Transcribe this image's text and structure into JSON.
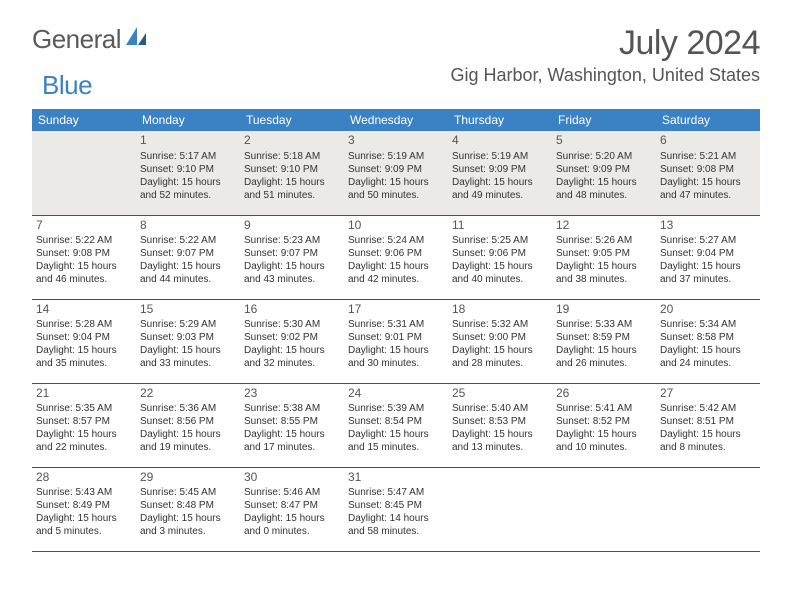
{
  "logo": {
    "text1": "General",
    "text2": "Blue"
  },
  "title": "July 2024",
  "location": "Gig Harbor, Washington, United States",
  "colors": {
    "header_bg": "#3b82c4",
    "row_border": "#2a5a8a",
    "logo_blue": "#3b82c4",
    "text": "#333333",
    "title_text": "#555555"
  },
  "dayNames": [
    "Sunday",
    "Monday",
    "Tuesday",
    "Wednesday",
    "Thursday",
    "Friday",
    "Saturday"
  ],
  "weeks": [
    [
      null,
      {
        "n": "1",
        "sr": "5:17 AM",
        "ss": "9:10 PM",
        "dl": "15 hours and 52 minutes."
      },
      {
        "n": "2",
        "sr": "5:18 AM",
        "ss": "9:10 PM",
        "dl": "15 hours and 51 minutes."
      },
      {
        "n": "3",
        "sr": "5:19 AM",
        "ss": "9:09 PM",
        "dl": "15 hours and 50 minutes."
      },
      {
        "n": "4",
        "sr": "5:19 AM",
        "ss": "9:09 PM",
        "dl": "15 hours and 49 minutes."
      },
      {
        "n": "5",
        "sr": "5:20 AM",
        "ss": "9:09 PM",
        "dl": "15 hours and 48 minutes."
      },
      {
        "n": "6",
        "sr": "5:21 AM",
        "ss": "9:08 PM",
        "dl": "15 hours and 47 minutes."
      }
    ],
    [
      {
        "n": "7",
        "sr": "5:22 AM",
        "ss": "9:08 PM",
        "dl": "15 hours and 46 minutes."
      },
      {
        "n": "8",
        "sr": "5:22 AM",
        "ss": "9:07 PM",
        "dl": "15 hours and 44 minutes."
      },
      {
        "n": "9",
        "sr": "5:23 AM",
        "ss": "9:07 PM",
        "dl": "15 hours and 43 minutes."
      },
      {
        "n": "10",
        "sr": "5:24 AM",
        "ss": "9:06 PM",
        "dl": "15 hours and 42 minutes."
      },
      {
        "n": "11",
        "sr": "5:25 AM",
        "ss": "9:06 PM",
        "dl": "15 hours and 40 minutes."
      },
      {
        "n": "12",
        "sr": "5:26 AM",
        "ss": "9:05 PM",
        "dl": "15 hours and 38 minutes."
      },
      {
        "n": "13",
        "sr": "5:27 AM",
        "ss": "9:04 PM",
        "dl": "15 hours and 37 minutes."
      }
    ],
    [
      {
        "n": "14",
        "sr": "5:28 AM",
        "ss": "9:04 PM",
        "dl": "15 hours and 35 minutes."
      },
      {
        "n": "15",
        "sr": "5:29 AM",
        "ss": "9:03 PM",
        "dl": "15 hours and 33 minutes."
      },
      {
        "n": "16",
        "sr": "5:30 AM",
        "ss": "9:02 PM",
        "dl": "15 hours and 32 minutes."
      },
      {
        "n": "17",
        "sr": "5:31 AM",
        "ss": "9:01 PM",
        "dl": "15 hours and 30 minutes."
      },
      {
        "n": "18",
        "sr": "5:32 AM",
        "ss": "9:00 PM",
        "dl": "15 hours and 28 minutes."
      },
      {
        "n": "19",
        "sr": "5:33 AM",
        "ss": "8:59 PM",
        "dl": "15 hours and 26 minutes."
      },
      {
        "n": "20",
        "sr": "5:34 AM",
        "ss": "8:58 PM",
        "dl": "15 hours and 24 minutes."
      }
    ],
    [
      {
        "n": "21",
        "sr": "5:35 AM",
        "ss": "8:57 PM",
        "dl": "15 hours and 22 minutes."
      },
      {
        "n": "22",
        "sr": "5:36 AM",
        "ss": "8:56 PM",
        "dl": "15 hours and 19 minutes."
      },
      {
        "n": "23",
        "sr": "5:38 AM",
        "ss": "8:55 PM",
        "dl": "15 hours and 17 minutes."
      },
      {
        "n": "24",
        "sr": "5:39 AM",
        "ss": "8:54 PM",
        "dl": "15 hours and 15 minutes."
      },
      {
        "n": "25",
        "sr": "5:40 AM",
        "ss": "8:53 PM",
        "dl": "15 hours and 13 minutes."
      },
      {
        "n": "26",
        "sr": "5:41 AM",
        "ss": "8:52 PM",
        "dl": "15 hours and 10 minutes."
      },
      {
        "n": "27",
        "sr": "5:42 AM",
        "ss": "8:51 PM",
        "dl": "15 hours and 8 minutes."
      }
    ],
    [
      {
        "n": "28",
        "sr": "5:43 AM",
        "ss": "8:49 PM",
        "dl": "15 hours and 5 minutes."
      },
      {
        "n": "29",
        "sr": "5:45 AM",
        "ss": "8:48 PM",
        "dl": "15 hours and 3 minutes."
      },
      {
        "n": "30",
        "sr": "5:46 AM",
        "ss": "8:47 PM",
        "dl": "15 hours and 0 minutes."
      },
      {
        "n": "31",
        "sr": "5:47 AM",
        "ss": "8:45 PM",
        "dl": "14 hours and 58 minutes."
      },
      null,
      null,
      null
    ]
  ],
  "labels": {
    "sunrise": "Sunrise:",
    "sunset": "Sunset:",
    "daylight": "Daylight:"
  }
}
